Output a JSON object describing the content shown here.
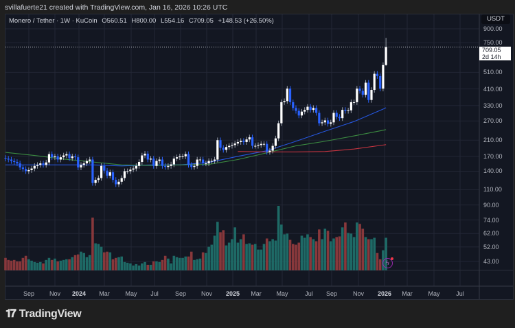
{
  "credit": "svillafuerte21 created with TradingView.com, Jan 16, 2026 10:26 UTC",
  "legend": {
    "symbol": "Monero / Tether · 1W · KuCoin",
    "open": "O560.51",
    "high": "H800.00",
    "low": "L554.16",
    "close": "C709.05",
    "change": "+148.53 (+26.50%)"
  },
  "currency_button": "USDT",
  "current_price": {
    "value": "709.05",
    "countdown": "2d 14h"
  },
  "footer_logo": {
    "mark": "TV",
    "text": "TradingView"
  },
  "colors": {
    "background": "#131722",
    "up_candle": "#ffffff",
    "down_candle": "#2962ff",
    "volume_up": "#1f6f6a",
    "volume_down": "#8e3a3d",
    "ma_blue": "#2962ff",
    "ma_green": "#43a047",
    "ma_red": "#e53945"
  },
  "chart_data": {
    "type": "candlestick",
    "title": "Monero / Tether · 1W · KuCoin",
    "interval": "1W",
    "y_scale": "log",
    "ylim": [
      40,
      950
    ],
    "grid": true,
    "price_ticks": [
      "900.00",
      "750.00",
      "510.00",
      "410.00",
      "330.00",
      "270.00",
      "210.00",
      "170.00",
      "140.00",
      "110.00",
      "90.00",
      "74.00",
      "62.00",
      "52.00",
      "43.00"
    ],
    "time_ticks": [
      {
        "label": "Sep",
        "year": false
      },
      {
        "label": "Nov",
        "year": false
      },
      {
        "label": "2024",
        "year": true
      },
      {
        "label": "Mar",
        "year": false
      },
      {
        "label": "May",
        "year": false
      },
      {
        "label": "Jul",
        "year": false
      },
      {
        "label": "Sep",
        "year": false
      },
      {
        "label": "Nov",
        "year": false
      },
      {
        "label": "2025",
        "year": true
      },
      {
        "label": "Mar",
        "year": false
      },
      {
        "label": "May",
        "year": false
      },
      {
        "label": "Jul",
        "year": false
      },
      {
        "label": "Sep",
        "year": false
      },
      {
        "label": "Nov",
        "year": false
      },
      {
        "label": "2026",
        "year": true
      },
      {
        "label": "Mar",
        "year": false
      },
      {
        "label": "May",
        "year": false
      },
      {
        "label": "Jul",
        "year": false
      }
    ],
    "closes": [
      165,
      163,
      160,
      158,
      155,
      147,
      144,
      140,
      142,
      145,
      150,
      152,
      155,
      152,
      157,
      175,
      168,
      170,
      163,
      168,
      172,
      175,
      166,
      170,
      168,
      147,
      152,
      155,
      160,
      163,
      120,
      125,
      128,
      150,
      141,
      132,
      138,
      125,
      118,
      122,
      128,
      140,
      140,
      143,
      145,
      150,
      158,
      172,
      176,
      163,
      165,
      150,
      160,
      163,
      150,
      148,
      150,
      153,
      165,
      168,
      170,
      170,
      175,
      152,
      148,
      150,
      163,
      163,
      155,
      155,
      160,
      160,
      163,
      210,
      190,
      185,
      192,
      195,
      197,
      201,
      205,
      208,
      205,
      212,
      218,
      195,
      195,
      197,
      200,
      200,
      180,
      183,
      195,
      215,
      262,
      345,
      350,
      412,
      345,
      320,
      308,
      290,
      305,
      312,
      325,
      312,
      320,
      300,
      262,
      265,
      272,
      260,
      265,
      300,
      285,
      280,
      312,
      308,
      310,
      345,
      345,
      412,
      400,
      380,
      445,
      355,
      405,
      500,
      485,
      412,
      560.51,
      709.05
    ],
    "last_candle": {
      "open": 560.51,
      "high": 800.0,
      "low": 554.16,
      "close": 709.05
    },
    "volume_relative": [
      18,
      15,
      14,
      15,
      13,
      13,
      18,
      21,
      16,
      14,
      12,
      11,
      12,
      10,
      15,
      18,
      15,
      17,
      13,
      14,
      15,
      16,
      16,
      19,
      22,
      23,
      27,
      25,
      19,
      22,
      76,
      39,
      38,
      34,
      26,
      27,
      26,
      16,
      18,
      19,
      20,
      12,
      11,
      10,
      7,
      9,
      7,
      10,
      12,
      8,
      8,
      13,
      13,
      12,
      15,
      21,
      17,
      10,
      21,
      19,
      18,
      18,
      20,
      20,
      27,
      15,
      16,
      17,
      26,
      25,
      34,
      37,
      50,
      70,
      55,
      58,
      36,
      40,
      45,
      62,
      40,
      45,
      52,
      38,
      39,
      37,
      38,
      30,
      30,
      38,
      46,
      42,
      45,
      43,
      93,
      66,
      52,
      53,
      44,
      38,
      37,
      40,
      50,
      47,
      52,
      48,
      45,
      42,
      59,
      45,
      60,
      57,
      42,
      46,
      48,
      49,
      62,
      69,
      54,
      53,
      48,
      69,
      67,
      60,
      48,
      45,
      45,
      47,
      25,
      16,
      29,
      47
    ],
    "moving_averages": [
      {
        "color": "#2962ff",
        "values": [
          152,
          152,
          152,
          152,
          150,
          152,
          152,
          157,
          170,
          183,
          207,
          236,
          268,
          315,
          321
        ]
      },
      {
        "color": "#43a047",
        "values": [
          179,
          172,
          164,
          158,
          152,
          151,
          152,
          153,
          163,
          178,
          195,
          207,
          222,
          239,
          241
        ]
      },
      {
        "color": "#e53945",
        "values": [
          null,
          null,
          null,
          null,
          null,
          null,
          null,
          null,
          181,
          180,
          180,
          181,
          187,
          197,
          198
        ]
      }
    ]
  }
}
